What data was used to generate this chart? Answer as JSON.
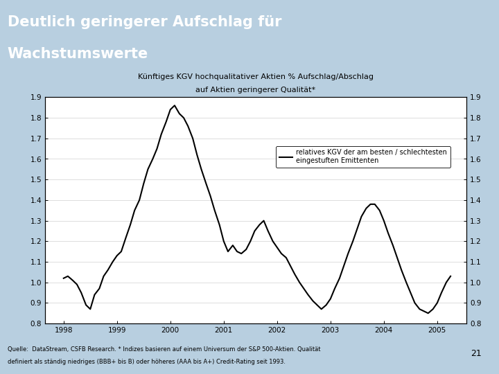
{
  "title_line1": "Deutlich geringerer Aufschlag für",
  "title_line2": "Wachstumswerte",
  "subtitle_line1": "Künftiges KGV hochqualitativer Aktien % Aufschlag/Abschlag",
  "subtitle_line2": "auf Aktien geringerer Qualität*",
  "legend_label": "relatives KGV der am besten / schlechtesten\neingestuften Emittenten",
  "header_bg": "#1f5a8b",
  "chart_bg": "#ffffff",
  "outer_bg": "#b8cfe0",
  "line_color": "#000000",
  "ylim": [
    0.8,
    1.9
  ],
  "yticks": [
    0.8,
    0.9,
    1.0,
    1.1,
    1.2,
    1.3,
    1.4,
    1.5,
    1.6,
    1.7,
    1.8,
    1.9
  ],
  "xlabel_ticks": [
    "1998",
    "1999",
    "2000",
    "2001",
    "2002",
    "2003",
    "2004",
    "2005"
  ],
  "footnote_line1": "Quelle:  DataStream, CSFB Research. * Indizes basieren auf einem Universum der S&P 500-Aktien. Qualität",
  "footnote_line2": "definiert als ständig niedriges (BBB+ bis B) oder höheres (AAA bis A+) Credit-Rating seit 1993.",
  "page_number": "21",
  "x_data": [
    1998.0,
    1998.08,
    1998.17,
    1998.25,
    1998.33,
    1998.42,
    1998.5,
    1998.58,
    1998.67,
    1998.75,
    1998.83,
    1998.92,
    1999.0,
    1999.08,
    1999.17,
    1999.25,
    1999.33,
    1999.42,
    1999.5,
    1999.58,
    1999.67,
    1999.75,
    1999.83,
    1999.92,
    2000.0,
    2000.08,
    2000.17,
    2000.25,
    2000.33,
    2000.42,
    2000.5,
    2000.58,
    2000.67,
    2000.75,
    2000.83,
    2000.92,
    2001.0,
    2001.08,
    2001.17,
    2001.25,
    2001.33,
    2001.42,
    2001.5,
    2001.58,
    2001.67,
    2001.75,
    2001.83,
    2001.92,
    2002.0,
    2002.08,
    2002.17,
    2002.25,
    2002.33,
    2002.42,
    2002.5,
    2002.58,
    2002.67,
    2002.75,
    2002.83,
    2002.92,
    2003.0,
    2003.08,
    2003.17,
    2003.25,
    2003.33,
    2003.42,
    2003.5,
    2003.58,
    2003.67,
    2003.75,
    2003.83,
    2003.92,
    2004.0,
    2004.08,
    2004.17,
    2004.25,
    2004.33,
    2004.42,
    2004.5,
    2004.58,
    2004.67,
    2004.75,
    2004.83,
    2004.92,
    2005.0,
    2005.08,
    2005.17,
    2005.25
  ],
  "y_data": [
    1.02,
    1.03,
    1.01,
    0.99,
    0.95,
    0.89,
    0.87,
    0.94,
    0.97,
    1.03,
    1.06,
    1.1,
    1.13,
    1.15,
    1.22,
    1.28,
    1.35,
    1.4,
    1.48,
    1.55,
    1.6,
    1.65,
    1.72,
    1.78,
    1.84,
    1.86,
    1.82,
    1.8,
    1.76,
    1.7,
    1.62,
    1.55,
    1.48,
    1.42,
    1.35,
    1.28,
    1.2,
    1.15,
    1.18,
    1.15,
    1.14,
    1.16,
    1.2,
    1.25,
    1.28,
    1.3,
    1.25,
    1.2,
    1.17,
    1.14,
    1.12,
    1.08,
    1.04,
    1.0,
    0.97,
    0.94,
    0.91,
    0.89,
    0.87,
    0.89,
    0.92,
    0.97,
    1.02,
    1.08,
    1.14,
    1.2,
    1.26,
    1.32,
    1.36,
    1.38,
    1.38,
    1.35,
    1.3,
    1.24,
    1.18,
    1.12,
    1.06,
    1.0,
    0.95,
    0.9,
    0.87,
    0.86,
    0.85,
    0.87,
    0.9,
    0.95,
    1.0,
    1.03
  ]
}
